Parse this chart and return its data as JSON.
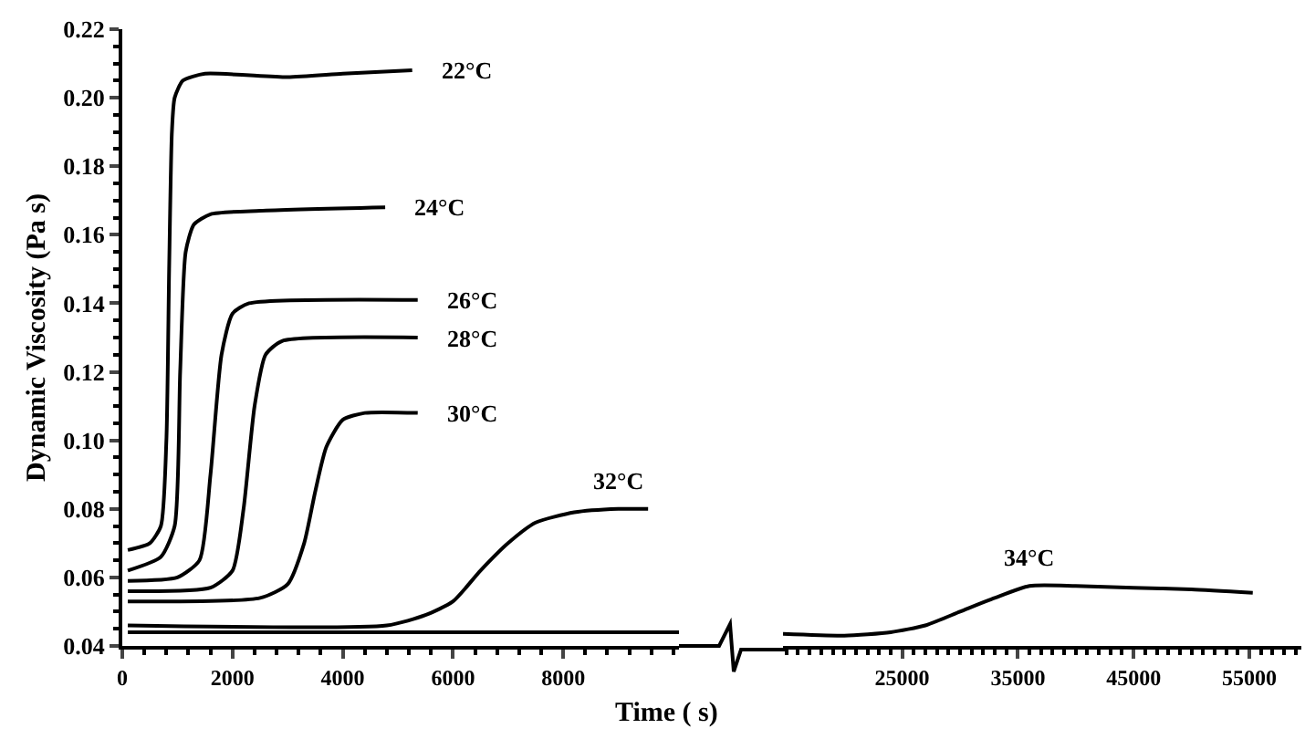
{
  "chart_data": [
    {
      "type": "line",
      "ylabel": "Dynamic Viscosity (Pa s)",
      "xlabel": "Time ( s)",
      "xlim": [
        0,
        10100
      ],
      "xticks": [
        0,
        2000,
        4000,
        6000,
        8000
      ],
      "ylim": [
        0.04,
        0.22
      ],
      "yticks": [
        {
          "value": 0.04,
          "label": "0.04"
        },
        {
          "value": 0.06,
          "label": "0.06"
        },
        {
          "value": 0.08,
          "label": "0.08"
        },
        {
          "value": 0.1,
          "label": "0.10"
        },
        {
          "value": 0.12,
          "label": "0.12"
        },
        {
          "value": 0.14,
          "label": "0.14"
        },
        {
          "value": 0.16,
          "label": "0.16"
        },
        {
          "value": 0.18,
          "label": "0.18"
        },
        {
          "value": 0.2,
          "label": "0.20"
        },
        {
          "value": 0.22,
          "label": "0.22"
        }
      ],
      "grid": false,
      "legend": false,
      "marker": "none",
      "line_style": "solid",
      "series": [
        {
          "name": "22°C",
          "color": "#000000",
          "x": [
            100,
            500,
            700,
            800,
            850,
            900,
            950,
            1100,
            1500,
            3000,
            4000,
            5260
          ],
          "values": [
            0.068,
            0.07,
            0.075,
            0.1,
            0.15,
            0.19,
            0.2,
            0.205,
            0.207,
            0.206,
            0.207,
            0.208
          ]
        },
        {
          "name": "24°C",
          "color": "#000000",
          "x": [
            100,
            700,
            950,
            1050,
            1150,
            1300,
            1600,
            2500,
            4770
          ],
          "values": [
            0.062,
            0.066,
            0.075,
            0.12,
            0.155,
            0.163,
            0.166,
            0.167,
            0.168
          ]
        },
        {
          "name": "26°C",
          "color": "#000000",
          "x": [
            100,
            1000,
            1400,
            1600,
            1800,
            2000,
            2300,
            5360
          ],
          "values": [
            0.059,
            0.06,
            0.065,
            0.09,
            0.125,
            0.137,
            0.14,
            0.141
          ]
        },
        {
          "name": "28°C",
          "color": "#000000",
          "x": [
            100,
            1600,
            2000,
            2200,
            2400,
            2600,
            2900,
            5360
          ],
          "values": [
            0.056,
            0.057,
            0.062,
            0.08,
            0.11,
            0.125,
            0.129,
            0.13
          ]
        },
        {
          "name": "30°C",
          "color": "#000000",
          "x": [
            100,
            2500,
            3000,
            3300,
            3500,
            3700,
            4000,
            4400,
            5360
          ],
          "values": [
            0.053,
            0.054,
            0.058,
            0.07,
            0.085,
            0.098,
            0.106,
            0.108,
            0.108
          ]
        },
        {
          "name": "32°C",
          "color": "#000000",
          "x": [
            100,
            4800,
            5500,
            6000,
            6500,
            7000,
            7500,
            8200,
            9000,
            9540
          ],
          "values": [
            0.046,
            0.046,
            0.049,
            0.053,
            0.062,
            0.07,
            0.076,
            0.079,
            0.08,
            0.08
          ]
        },
        {
          "color": "#000000",
          "x": [
            100,
            10100
          ],
          "values": [
            0.044,
            0.044
          ]
        }
      ]
    },
    {
      "type": "line",
      "xlim": [
        14700,
        59500
      ],
      "xticks": [
        25000,
        35000,
        45000,
        55000
      ],
      "ylim": [
        0.04,
        0.22
      ],
      "tick_labels": "x",
      "grid": false,
      "legend": false,
      "marker": "none",
      "line_style": "solid",
      "series": [
        {
          "name": "34°C",
          "color": "#000000",
          "x": [
            14700,
            20000,
            24000,
            27000,
            30000,
            33000,
            36000,
            40000,
            45000,
            50000,
            55300
          ],
          "values": [
            0.0435,
            0.043,
            0.044,
            0.046,
            0.05,
            0.054,
            0.0575,
            0.0575,
            0.057,
            0.0565,
            0.0555
          ]
        }
      ]
    }
  ]
}
